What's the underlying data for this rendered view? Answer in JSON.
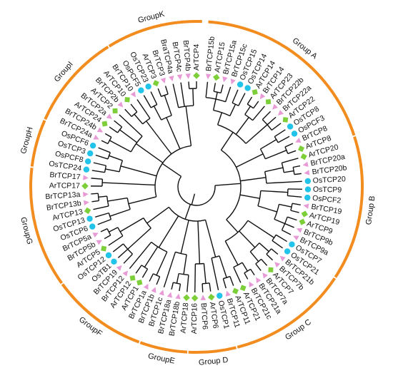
{
  "colors": {
    "arc": "#f28c1e",
    "line": "#111111",
    "marker_triangle": "#e89ad6",
    "marker_circle": "#22c3e8",
    "marker_diamond": "#7ccf38"
  },
  "leaves": [
    {
      "label": "BrTCP15b",
      "marker": "triangle"
    },
    {
      "label": "ArTCP15",
      "marker": "diamond"
    },
    {
      "label": "BrTCP15a",
      "marker": "triangle"
    },
    {
      "label": "BrTCP15c",
      "marker": "triangle"
    },
    {
      "label": "OsTCP15",
      "marker": "circle"
    },
    {
      "label": "OsTCP14",
      "marker": "circle"
    },
    {
      "label": "ArTCP14",
      "marker": "diamond"
    },
    {
      "label": "BrTCP14",
      "marker": "triangle"
    },
    {
      "label": "ArTCP23",
      "marker": "diamond"
    },
    {
      "label": "BrTCP22b",
      "marker": "triangle"
    },
    {
      "label": "BrTCP22a",
      "marker": "triangle"
    },
    {
      "label": "ArTCP22",
      "marker": "diamond"
    },
    {
      "label": "OsTCP8",
      "marker": "circle"
    },
    {
      "label": "OsPCF3",
      "marker": "circle"
    },
    {
      "label": "BrTCP8",
      "marker": "triangle"
    },
    {
      "label": "ArTCP8",
      "marker": "diamond"
    },
    {
      "label": "ArTCP20",
      "marker": "diamond"
    },
    {
      "label": "BrTCP20a",
      "marker": "triangle"
    },
    {
      "label": "BrTCP20b",
      "marker": "triangle"
    },
    {
      "label": "OsTCP20",
      "marker": "circle"
    },
    {
      "label": "OsTCP9",
      "marker": "circle"
    },
    {
      "label": "OsPCF2",
      "marker": "circle"
    },
    {
      "label": "BrTCP19",
      "marker": "triangle"
    },
    {
      "label": "ArTCP19",
      "marker": "diamond"
    },
    {
      "label": "ArTCP9",
      "marker": "diamond"
    },
    {
      "label": "BrTCP9b",
      "marker": "triangle"
    },
    {
      "label": "BrTCP9a",
      "marker": "triangle"
    },
    {
      "label": "OsTCP7",
      "marker": "circle"
    },
    {
      "label": "OsTCP21",
      "marker": "circle"
    },
    {
      "label": "BrTCP21b",
      "marker": "triangle"
    },
    {
      "label": "BrTCP7b",
      "marker": "triangle"
    },
    {
      "label": "ArTCP7",
      "marker": "diamond"
    },
    {
      "label": "BrTCP7a",
      "marker": "triangle"
    },
    {
      "label": "BrTCP21a",
      "marker": "triangle"
    },
    {
      "label": "BrTCP21c",
      "marker": "triangle"
    },
    {
      "label": "ArTCP21",
      "marker": "diamond"
    },
    {
      "label": "ArTCP11",
      "marker": "diamond"
    },
    {
      "label": "BrTCP11",
      "marker": "triangle"
    },
    {
      "label": "OsTCP1",
      "marker": "circle"
    },
    {
      "label": "ArTCP6",
      "marker": "diamond"
    },
    {
      "label": "BrTCP6",
      "marker": "triangle"
    },
    {
      "label": "ArTCP16",
      "marker": "diamond"
    },
    {
      "label": "ArTCP18",
      "marker": "diamond"
    },
    {
      "label": "BrTCP18b",
      "marker": "triangle"
    },
    {
      "label": "BrTCP18a",
      "marker": "triangle"
    },
    {
      "label": "BrTCP1c",
      "marker": "triangle"
    },
    {
      "label": "BrTCP1b",
      "marker": "triangle"
    },
    {
      "label": "BrTCP1a",
      "marker": "triangle"
    },
    {
      "label": "ArTCP1",
      "marker": "diamond"
    },
    {
      "label": "ArTCP12",
      "marker": "diamond"
    },
    {
      "label": "BrTCP12",
      "marker": "triangle"
    },
    {
      "label": "BrTCP19",
      "marker": "triangle"
    },
    {
      "label": "OsTB1",
      "marker": "circle"
    },
    {
      "label": "OsTCP12",
      "marker": "circle"
    },
    {
      "label": "ArTCP5",
      "marker": "diamond"
    },
    {
      "label": "BrTCP5b",
      "marker": "triangle"
    },
    {
      "label": "BrTCP5a",
      "marker": "triangle"
    },
    {
      "label": "OsTCP6",
      "marker": "circle"
    },
    {
      "label": "OsTCP13",
      "marker": "circle"
    },
    {
      "label": "ArTCP13",
      "marker": "diamond"
    },
    {
      "label": "BrTCP13b",
      "marker": "triangle"
    },
    {
      "label": "BrTCP13a",
      "marker": "triangle"
    },
    {
      "label": "ArTCP17",
      "marker": "diamond"
    },
    {
      "label": "BrTCP17",
      "marker": "triangle"
    },
    {
      "label": "OsTCP24",
      "marker": "circle"
    },
    {
      "label": "OsPCF8",
      "marker": "circle"
    },
    {
      "label": "OsTCP3",
      "marker": "circle"
    },
    {
      "label": "OsPCF6",
      "marker": "circle"
    },
    {
      "label": "BrTCP24a",
      "marker": "triangle"
    },
    {
      "label": "BrTCP24b",
      "marker": "triangle"
    },
    {
      "label": "ArTCP24",
      "marker": "diamond"
    },
    {
      "label": "BrTCP2a",
      "marker": "triangle"
    },
    {
      "label": "ArTCP2",
      "marker": "diamond"
    },
    {
      "label": "BrTCP2b",
      "marker": "triangle"
    },
    {
      "label": "ArTCP10",
      "marker": "diamond"
    },
    {
      "label": "BrTCP10",
      "marker": "triangle"
    },
    {
      "label": "OsPCF5",
      "marker": "circle"
    },
    {
      "label": "OsTCP23",
      "marker": "circle"
    },
    {
      "label": "ArTCP3",
      "marker": "diamond"
    },
    {
      "label": "BrTCP3",
      "marker": "triangle"
    },
    {
      "label": "BraTCP4a",
      "marker": "triangle"
    },
    {
      "label": "BrTCP4c",
      "marker": "triangle"
    },
    {
      "label": "BrTCP4b",
      "marker": "triangle"
    },
    {
      "label": "ArTCP4",
      "marker": "diamond"
    }
  ],
  "groups": [
    {
      "label": "Group A",
      "from": 0,
      "to": 15
    },
    {
      "label": "Group B",
      "from": 16,
      "to": 27
    },
    {
      "label": "Group C",
      "from": 28,
      "to": 37
    },
    {
      "label": "Group D",
      "from": 38,
      "to": 41
    },
    {
      "label": "GroupE",
      "from": 42,
      "to": 45
    },
    {
      "label": "GroupF",
      "from": 46,
      "to": 53
    },
    {
      "label": "GroupG",
      "from": 54,
      "to": 63
    },
    {
      "label": "GroupH",
      "from": 64,
      "to": 67
    },
    {
      "label": "GroupI",
      "from": 68,
      "to": 75
    },
    {
      "label": "GroupK",
      "from": 76,
      "to": 83
    }
  ]
}
